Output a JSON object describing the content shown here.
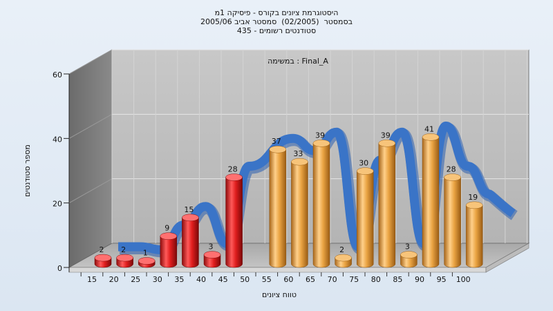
{
  "title_lines": [
    "היסטוגרמת ציונים בקורס - פיסיקה 1מ",
    "בסמסטר  (02/2005)  סמסטר אביב 2005/06",
    "סטודנטים רשומים - 435"
  ],
  "chart_data": {
    "type": "bar",
    "subtitle": "במשימה : Final_A",
    "xlabel": "טווח ציונים",
    "ylabel": "מספר סטודנטים",
    "ylim": [
      0,
      60
    ],
    "yticks": [
      0,
      20,
      40,
      60
    ],
    "xticks": [
      "15",
      "20",
      "25",
      "30",
      "35",
      "40",
      "45",
      "50",
      "55",
      "60",
      "65",
      "70",
      "75",
      "80",
      "85",
      "90",
      "95",
      "100"
    ],
    "categories": [
      "15",
      "20",
      "25",
      "30",
      "35",
      "40",
      "45",
      "55",
      "60",
      "65",
      "70",
      "75",
      "80",
      "85",
      "90",
      "95",
      "100"
    ],
    "values": [
      2,
      2,
      1,
      9,
      15,
      3,
      28,
      37,
      33,
      39,
      2,
      30,
      39,
      3,
      41,
      28,
      19
    ],
    "bar_colors": [
      "#d81c1c",
      "#d81c1c",
      "#d81c1c",
      "#d81c1c",
      "#d81c1c",
      "#d81c1c",
      "#d81c1c",
      "#e8a13e",
      "#e8a13e",
      "#e8a13e",
      "#e8a13e",
      "#e8a13e",
      "#e8a13e",
      "#e8a13e",
      "#e8a13e",
      "#e8a13e",
      "#e8a13e"
    ],
    "trend_color": "#3a74c7",
    "grid": true
  }
}
